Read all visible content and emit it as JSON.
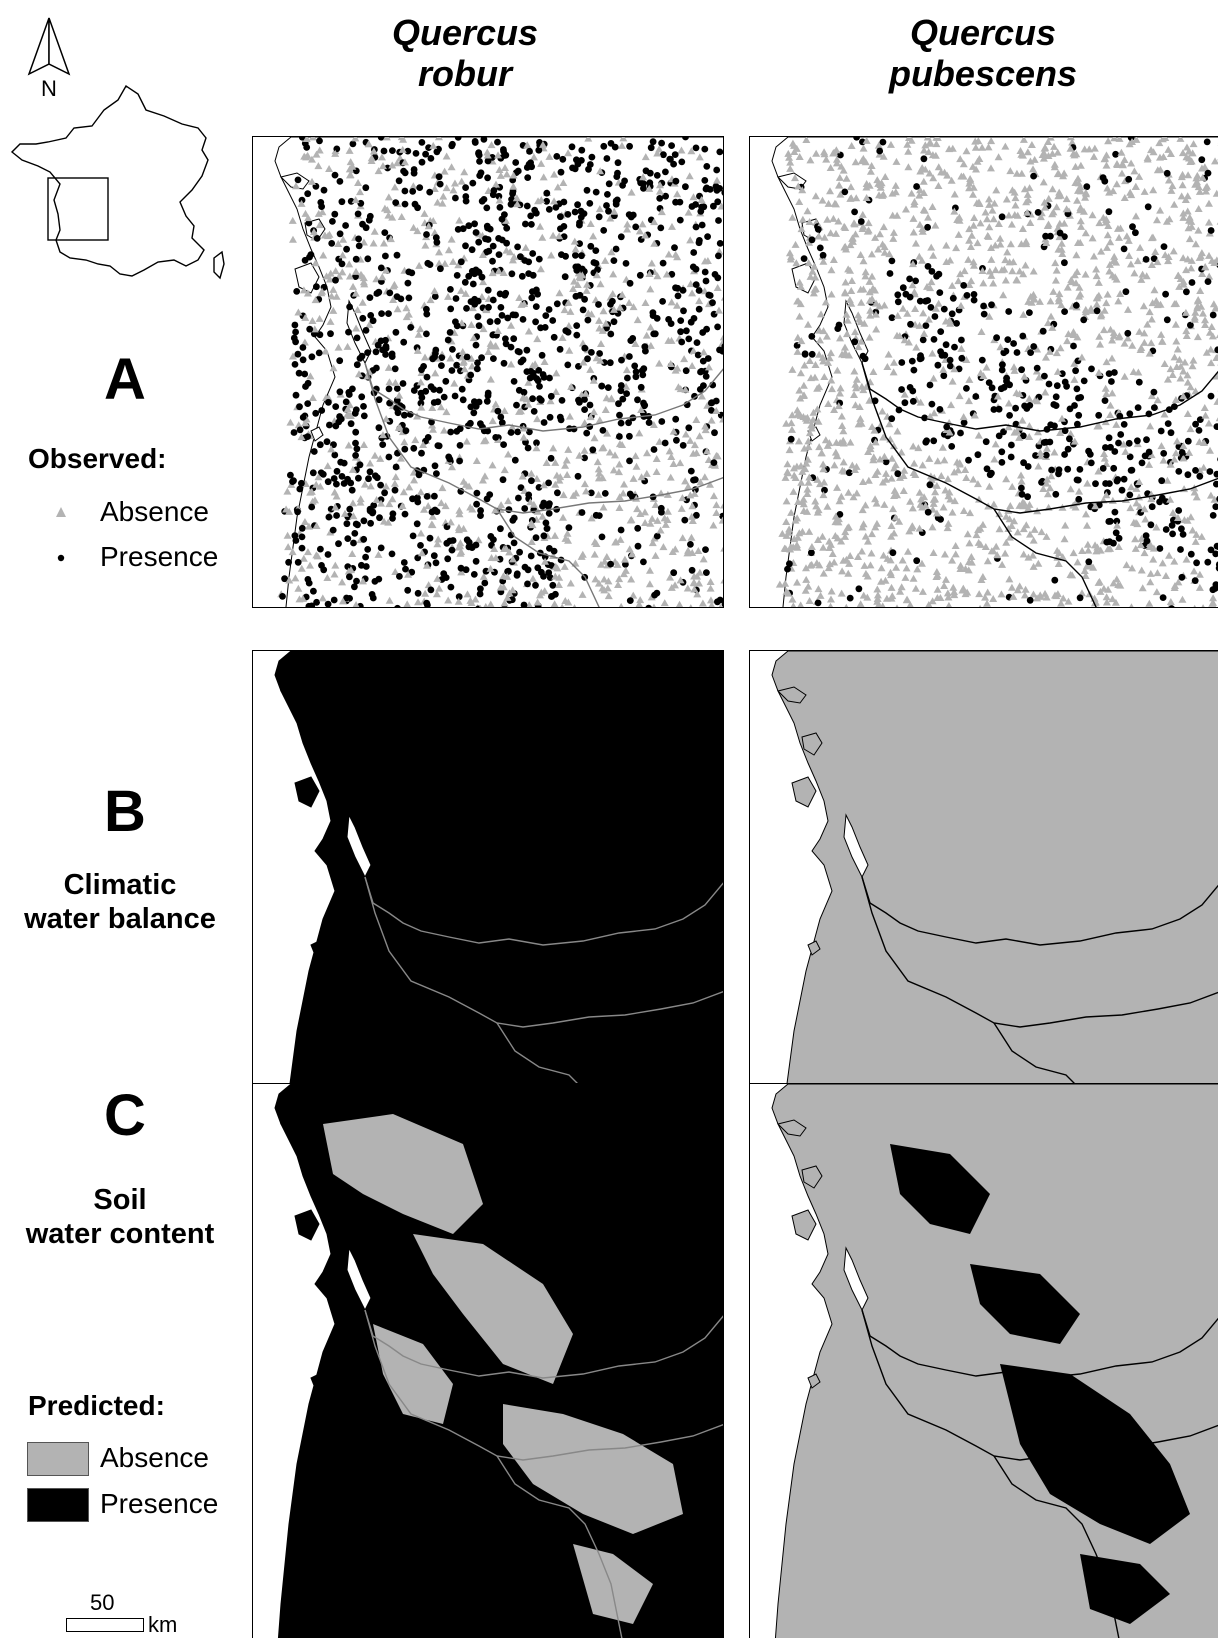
{
  "columns": [
    {
      "title_line1": "Quercus",
      "title_line2": "robur"
    },
    {
      "title_line1": "Quercus",
      "title_line2": "pubescens"
    }
  ],
  "rows": [
    {
      "letter": "A"
    },
    {
      "letter": "B",
      "caption_line1": "Climatic",
      "caption_line2": "water balance"
    },
    {
      "letter": "C",
      "caption_line1": "Soil",
      "caption_line2": "water content"
    }
  ],
  "north_arrow": {
    "label": "N"
  },
  "observed_legend": {
    "heading": "Observed:",
    "items": [
      {
        "label": "Absence",
        "symbol": "triangle",
        "color": "#b3b3b3"
      },
      {
        "label": "Presence",
        "symbol": "dot",
        "color": "#000000"
      }
    ]
  },
  "predicted_legend": {
    "heading": "Predicted:",
    "items": [
      {
        "label": "Absence",
        "color": "#b3b3b3"
      },
      {
        "label": "Presence",
        "color": "#000000"
      }
    ]
  },
  "scale_bar": {
    "value": "50",
    "unit": "km"
  },
  "colors": {
    "absence": "#b3b3b3",
    "presence": "#000000",
    "sea": "#ffffff"
  }
}
